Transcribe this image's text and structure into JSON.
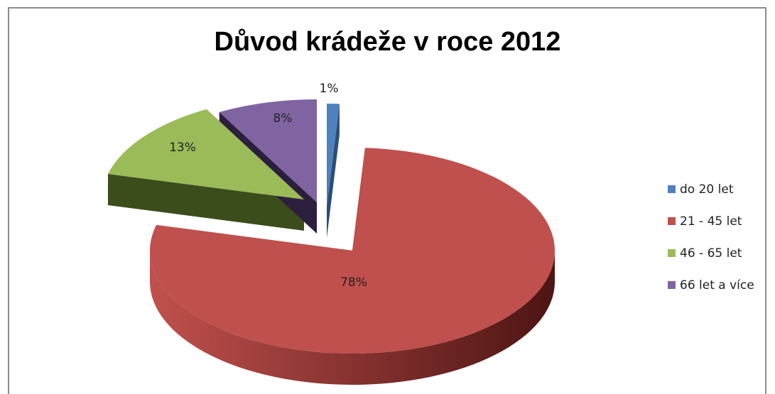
{
  "chart_data": {
    "type": "pie",
    "title": "Důvod krádeže v roce 2012",
    "categories": [
      "do 20 let",
      "21 - 45 let",
      "46 - 65 let",
      "66 let a více"
    ],
    "values": [
      1,
      78,
      13,
      8
    ],
    "labels": [
      "1%",
      "78%",
      "13%",
      "8%"
    ],
    "colors": [
      "#4f81bd",
      "#c0504d",
      "#9bbb59",
      "#8064a2"
    ],
    "side_colors": [
      "#2c4d75",
      "#4d1513",
      "#3c4d1c",
      "#2c1f3e"
    ],
    "exploded": true,
    "three_d": true,
    "legend_position": "right"
  }
}
